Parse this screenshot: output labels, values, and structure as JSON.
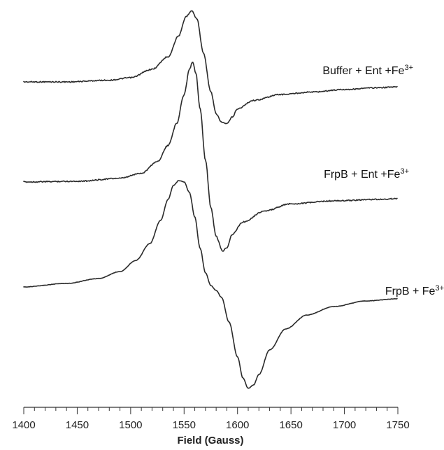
{
  "chart_data": {
    "type": "line",
    "xlabel": "Field (Gauss)",
    "ylabel": "",
    "xlim": [
      1400,
      1750
    ],
    "x_ticks": [
      "1400",
      "1450",
      "1500",
      "1550",
      "1600",
      "1650",
      "1700",
      "1750"
    ],
    "x_minor_step": 10,
    "y_ticks": "none",
    "grid": false,
    "line_color": "#2a2a2a",
    "series": [
      {
        "name": "Buffer + Ent +Fe3+",
        "label": {
          "main": "Buffer + Ent +Fe",
          "sup": "3+"
        },
        "points": [
          [
            1400,
            0.0
          ],
          [
            1440,
            0.0
          ],
          [
            1480,
            0.02
          ],
          [
            1500,
            0.05
          ],
          [
            1520,
            0.15
          ],
          [
            1535,
            0.3
          ],
          [
            1545,
            0.55
          ],
          [
            1552,
            0.78
          ],
          [
            1557,
            0.85
          ],
          [
            1562,
            0.75
          ],
          [
            1568,
            0.35
          ],
          [
            1575,
            -0.12
          ],
          [
            1580,
            -0.38
          ],
          [
            1585,
            -0.48
          ],
          [
            1590,
            -0.5
          ],
          [
            1595,
            -0.42
          ],
          [
            1600,
            -0.32
          ],
          [
            1615,
            -0.22
          ],
          [
            1640,
            -0.15
          ],
          [
            1670,
            -0.12
          ],
          [
            1700,
            -0.09
          ],
          [
            1730,
            -0.07
          ],
          [
            1750,
            -0.06
          ]
        ]
      },
      {
        "name": "FrpB + Ent +Fe3+",
        "label": {
          "main": "FrpB + Ent +Fe",
          "sup": "3+"
        },
        "points": [
          [
            1400,
            0.0
          ],
          [
            1450,
            0.01
          ],
          [
            1490,
            0.05
          ],
          [
            1510,
            0.12
          ],
          [
            1525,
            0.28
          ],
          [
            1535,
            0.5
          ],
          [
            1543,
            0.8
          ],
          [
            1550,
            1.2
          ],
          [
            1555,
            1.55
          ],
          [
            1558,
            1.65
          ],
          [
            1561,
            1.5
          ],
          [
            1565,
            1.0
          ],
          [
            1570,
            0.3
          ],
          [
            1575,
            -0.35
          ],
          [
            1580,
            -0.75
          ],
          [
            1586,
            -0.95
          ],
          [
            1590,
            -0.9
          ],
          [
            1595,
            -0.72
          ],
          [
            1605,
            -0.55
          ],
          [
            1625,
            -0.4
          ],
          [
            1650,
            -0.3
          ],
          [
            1690,
            -0.26
          ],
          [
            1730,
            -0.24
          ],
          [
            1750,
            -0.23
          ]
        ]
      },
      {
        "name": "FrpB + Fe3+",
        "label": {
          "main": "FrpB + Fe",
          "sup": "3+"
        },
        "points": [
          [
            1400,
            0.0
          ],
          [
            1440,
            0.05
          ],
          [
            1470,
            0.12
          ],
          [
            1490,
            0.22
          ],
          [
            1505,
            0.38
          ],
          [
            1518,
            0.62
          ],
          [
            1528,
            0.95
          ],
          [
            1535,
            1.25
          ],
          [
            1540,
            1.45
          ],
          [
            1545,
            1.52
          ],
          [
            1550,
            1.5
          ],
          [
            1555,
            1.35
          ],
          [
            1560,
            1.0
          ],
          [
            1565,
            0.55
          ],
          [
            1570,
            0.2
          ],
          [
            1575,
            0.02
          ],
          [
            1580,
            -0.05
          ],
          [
            1585,
            -0.15
          ],
          [
            1592,
            -0.5
          ],
          [
            1600,
            -1.0
          ],
          [
            1605,
            -1.3
          ],
          [
            1610,
            -1.45
          ],
          [
            1615,
            -1.4
          ],
          [
            1620,
            -1.25
          ],
          [
            1630,
            -0.9
          ],
          [
            1645,
            -0.6
          ],
          [
            1665,
            -0.4
          ],
          [
            1690,
            -0.28
          ],
          [
            1720,
            -0.2
          ],
          [
            1750,
            -0.17
          ]
        ]
      }
    ]
  }
}
